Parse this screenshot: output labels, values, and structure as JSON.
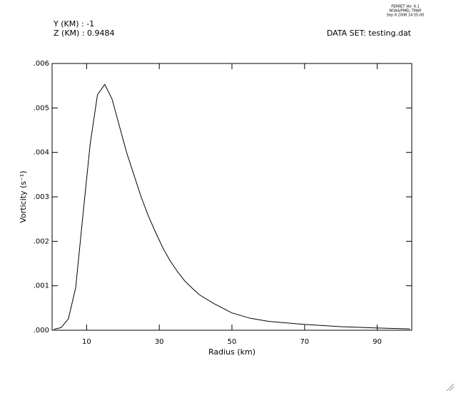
{
  "chart_data": {
    "type": "line",
    "header_lines": [
      "FERRET Ver. 6.1",
      "NOAA/PMEL TMAP",
      "Sep  8 2008 14:55:00"
    ],
    "annotations": [
      "Y (KM) : -1",
      "Z (KM) : 0.9484"
    ],
    "dataset_label": "DATA SET: testing.dat",
    "x_label": "Radius (km)",
    "y_label": "Vorticity (s⁻¹)",
    "x": [
      1,
      3,
      5,
      7,
      9,
      11,
      13,
      15,
      17,
      19,
      21,
      23,
      25,
      27,
      29,
      31,
      33,
      35,
      37,
      39,
      41,
      45,
      50,
      55,
      60,
      70,
      80,
      90,
      99
    ],
    "series": [
      {
        "name": "Vorticity",
        "color": "#000000",
        "values": [
          2e-05,
          6e-05,
          0.00026,
          0.00096,
          0.0026,
          0.0042,
          0.0053,
          0.00553,
          0.0052,
          0.0046,
          0.004,
          0.0035,
          0.003,
          0.00257,
          0.0022,
          0.00185,
          0.00156,
          0.00132,
          0.00111,
          0.00095,
          0.0008,
          0.0006,
          0.00039,
          0.00027,
          0.0002,
          0.00013,
          8e-05,
          5e-05,
          3e-05
        ]
      }
    ],
    "xlim": [
      0.5,
      99.5
    ],
    "ylim": [
      0,
      0.006
    ],
    "xticks": [
      10,
      30,
      50,
      70,
      90
    ],
    "yticks": [
      {
        "value": 0,
        "label": ".000"
      },
      {
        "value": 0.001,
        "label": ".001"
      },
      {
        "value": 0.002,
        "label": ".002"
      },
      {
        "value": 0.003,
        "label": ".003"
      },
      {
        "value": 0.004,
        "label": ".004"
      },
      {
        "value": 0.005,
        "label": ".005"
      },
      {
        "value": 0.006,
        "label": ".006"
      }
    ]
  }
}
